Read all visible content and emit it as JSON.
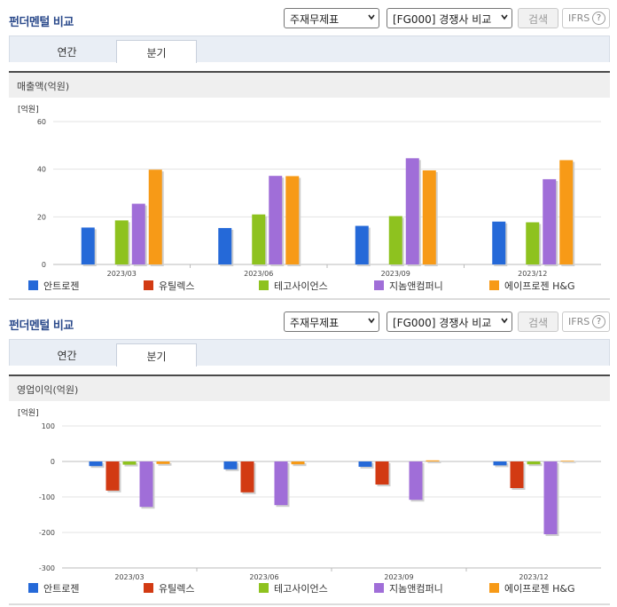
{
  "sections": [
    {
      "title": "펀더멘털 비교",
      "select1": "주재무제표",
      "select2": "[FG000] 경쟁사 비교",
      "search_button": "검색",
      "ifrs_label": "IFRS",
      "help_label": "?",
      "tabs": [
        {
          "label": "연간",
          "active": false
        },
        {
          "label": "분기",
          "active": true
        }
      ],
      "chart_title": "매출액(억원)",
      "chart_data": {
        "type": "bar",
        "unit_label": "[억원]",
        "categories": [
          "2023/03",
          "2023/06",
          "2023/09",
          "2023/12"
        ],
        "ylim": [
          0,
          60
        ],
        "yticks": [
          "0",
          "20",
          "40",
          "60"
        ],
        "series": [
          {
            "name": "안트로젠",
            "color": "#2569d8",
            "values": [
              15.5,
              15.3,
              16.2,
              18.0
            ]
          },
          {
            "name": "유틸렉스",
            "color": "#d23a13",
            "values": [
              0,
              0,
              0,
              0
            ]
          },
          {
            "name": "테고사이언스",
            "color": "#8ec21f",
            "values": [
              18.5,
              21.0,
              20.3,
              17.7
            ]
          },
          {
            "name": "지놈앤컴퍼니",
            "color": "#a06ed8",
            "values": [
              25.5,
              37.2,
              44.6,
              35.8
            ]
          },
          {
            "name": "에이프로젠 H&G",
            "color": "#f79a17",
            "values": [
              39.8,
              37.1,
              39.5,
              43.8
            ]
          }
        ]
      }
    },
    {
      "title": "펀더멘털 비교",
      "select1": "주재무제표",
      "select2": "[FG000] 경쟁사 비교",
      "search_button": "검색",
      "ifrs_label": "IFRS",
      "help_label": "?",
      "tabs": [
        {
          "label": "연간",
          "active": false
        },
        {
          "label": "분기",
          "active": true
        }
      ],
      "chart_title": "영업이익(억원)",
      "chart_data": {
        "type": "bar",
        "unit_label": "[억원]",
        "categories": [
          "2023/03",
          "2023/06",
          "2023/09",
          "2023/12"
        ],
        "ylim": [
          -300,
          100
        ],
        "yticks": [
          "-300",
          "-200",
          "-100",
          "0",
          "100"
        ],
        "series": [
          {
            "name": "안트로젠",
            "color": "#2569d8",
            "values": [
              -13,
              -22,
              -15,
              -11
            ]
          },
          {
            "name": "유틸렉스",
            "color": "#d23a13",
            "values": [
              -82,
              -87,
              -65,
              -75
            ]
          },
          {
            "name": "테고사이언스",
            "color": "#8ec21f",
            "values": [
              -9,
              0,
              0,
              -8
            ]
          },
          {
            "name": "지놈앤컴퍼니",
            "color": "#a06ed8",
            "values": [
              -128,
              -123,
              -108,
              -205
            ]
          },
          {
            "name": "에이프로젠 H&G",
            "color": "#f79a17",
            "values": [
              -7,
              -8,
              3,
              2
            ]
          }
        ]
      }
    }
  ]
}
